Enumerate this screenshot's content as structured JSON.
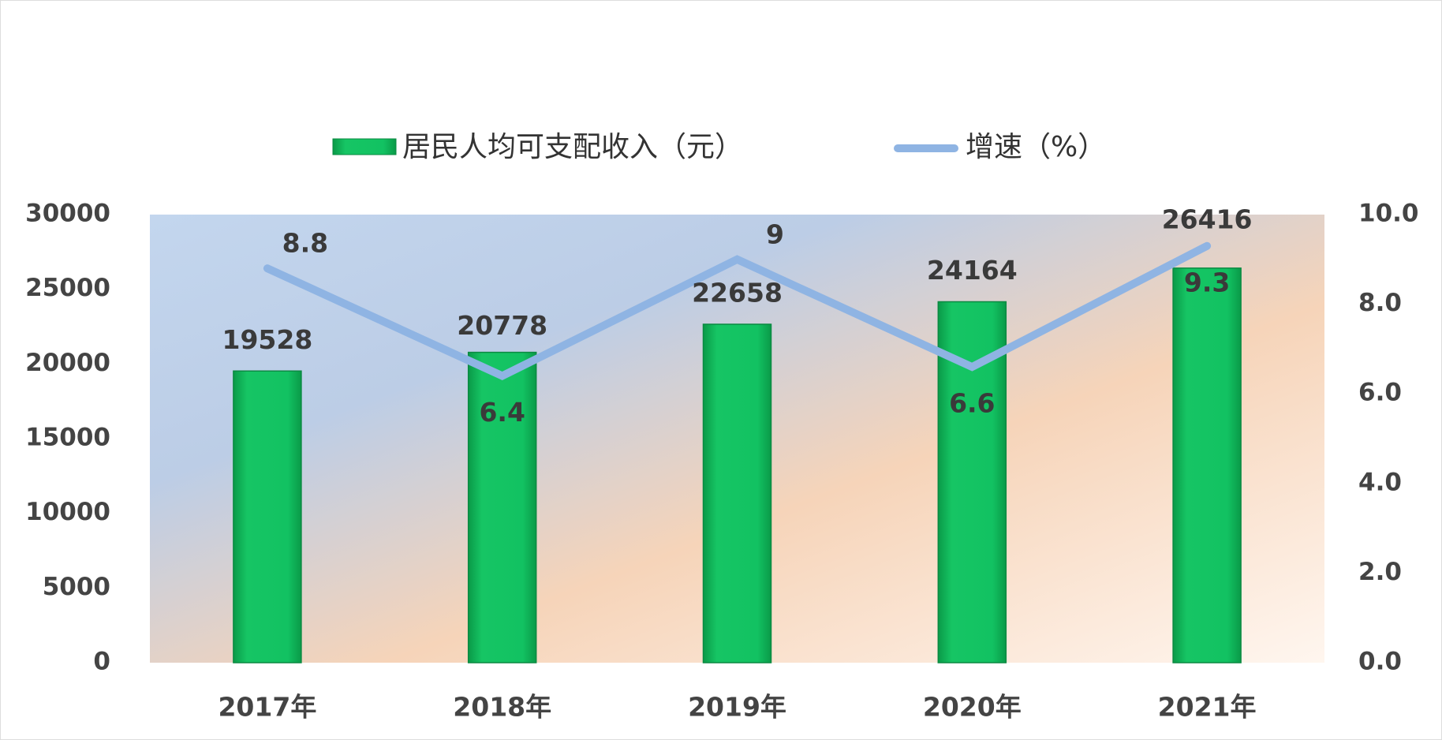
{
  "chart_data": {
    "type": "bar",
    "categories": [
      "2017年",
      "2018年",
      "2019年",
      "2020年",
      "2021年"
    ],
    "series": [
      {
        "name": "居民人均可支配收入（元）",
        "color": "#12c262",
        "values": [
          19528,
          20778,
          22658,
          24164,
          26416
        ]
      },
      {
        "name": "增速（%）",
        "color": "#8fb4e3",
        "axis": "y2",
        "values": [
          8.8,
          6.4,
          9.0,
          6.6,
          9.3
        ]
      }
    ],
    "ylim": [
      0,
      30000
    ],
    "yticks": [
      0,
      5000,
      10000,
      15000,
      20000,
      25000,
      30000
    ],
    "y2lim": [
      0,
      10
    ],
    "y2ticks": [
      {
        "value": 0,
        "label": "0.0"
      },
      {
        "value": 2,
        "label": "2.0"
      },
      {
        "value": 4,
        "label": "4.0"
      },
      {
        "value": 6,
        "label": "6.0"
      },
      {
        "value": 8,
        "label": "8.0"
      },
      {
        "value": 10,
        "label": "10.0"
      }
    ],
    "legend": "top"
  }
}
